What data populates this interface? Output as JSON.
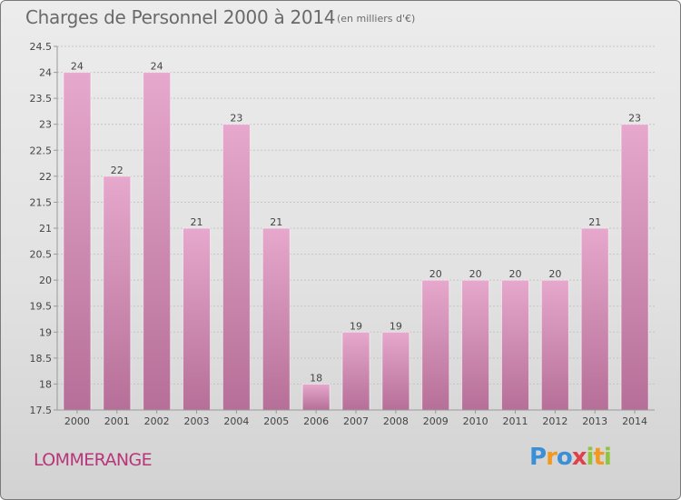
{
  "header": {
    "title": "Charges de Personnel 2000 à 2014",
    "subtitle": "(en milliers d'€)"
  },
  "footer": {
    "commune": "LOMMERANGE",
    "logo_text": "Proxiti"
  },
  "colors": {
    "bar_top": "#e6a8cc",
    "bar_bottom": "#b66f98",
    "axis": "#999999",
    "grid": "#c4c4c4",
    "text": "#444444",
    "commune": "#b8357a"
  },
  "chart_data": {
    "type": "bar",
    "categories": [
      "2000",
      "2001",
      "2002",
      "2003",
      "2004",
      "2005",
      "2006",
      "2007",
      "2008",
      "2009",
      "2010",
      "2011",
      "2012",
      "2013",
      "2014"
    ],
    "values": [
      24,
      22,
      24,
      21,
      23,
      21,
      18,
      19,
      19,
      20,
      20,
      20,
      20,
      21,
      23
    ],
    "data_labels": [
      "24",
      "22",
      "24",
      "21",
      "23",
      "21",
      "18",
      "19",
      "19",
      "20",
      "20",
      "20",
      "20",
      "21",
      "23"
    ],
    "yticks": [
      "17.5",
      "18",
      "18.5",
      "19",
      "19.5",
      "20",
      "20.5",
      "21",
      "21.5",
      "22",
      "22.5",
      "23",
      "23.5",
      "24",
      "24.5"
    ],
    "ylim": [
      17.5,
      24.5
    ],
    "grid": true,
    "legend": "none"
  }
}
